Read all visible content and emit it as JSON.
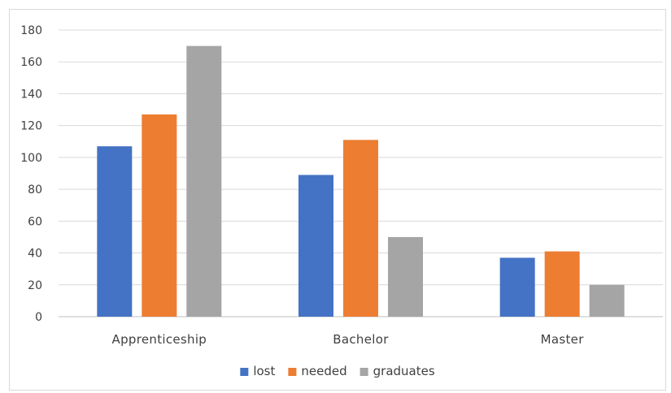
{
  "chart_data": {
    "type": "bar",
    "title": "",
    "xlabel": "",
    "ylabel": "",
    "categories": [
      "Apprenticeship",
      "Bachelor",
      "Master"
    ],
    "series": [
      {
        "name": "lost",
        "color": "#4472c4",
        "values": [
          107,
          89,
          37
        ]
      },
      {
        "name": "needed",
        "color": "#ed7d31",
        "values": [
          127,
          111,
          41
        ]
      },
      {
        "name": "graduates",
        "color": "#a5a5a5",
        "values": [
          170,
          50,
          20
        ]
      }
    ],
    "ylim": [
      0,
      180
    ],
    "yticks": [
      0,
      20,
      40,
      60,
      80,
      100,
      120,
      140,
      160,
      180
    ],
    "grid": true,
    "legend_position": "bottom"
  }
}
